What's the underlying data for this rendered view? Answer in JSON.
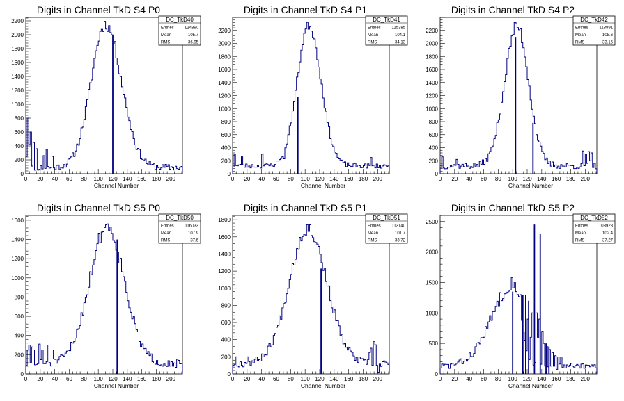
{
  "colors": {
    "line": "#00007f",
    "axis": "#000000",
    "background": "#ffffff"
  },
  "chart_data": [
    {
      "type": "histogram",
      "title": "Digits in Channel TkD S4 P0",
      "xlabel": "Channel Number",
      "ylabel": "",
      "xlim": [
        0,
        216
      ],
      "ylim": [
        0,
        2250
      ],
      "xticks": [
        0,
        20,
        40,
        60,
        80,
        100,
        120,
        140,
        160,
        180,
        200
      ],
      "yticks": [
        0,
        200,
        400,
        600,
        800,
        1000,
        1200,
        1400,
        1600,
        1800,
        2000,
        2200
      ],
      "stats": {
        "name": "DC_TkD40",
        "rows": [
          [
            "Entries",
            "124890"
          ],
          [
            "Mean",
            "105.7"
          ],
          [
            "RMS",
            "36.95"
          ]
        ]
      },
      "profile": {
        "peak_x": 110,
        "peak_y": 2150,
        "sigma_left": 20,
        "sigma_right": 22,
        "base": 90,
        "noise": 90,
        "seed": 11
      },
      "bin_overrides": [
        [
          0,
          450
        ],
        [
          1,
          250
        ],
        [
          3,
          800
        ],
        [
          5,
          420
        ],
        [
          6,
          600
        ],
        [
          10,
          450
        ],
        [
          15,
          360
        ],
        [
          24,
          260
        ],
        [
          28,
          350
        ],
        [
          36,
          250
        ]
      ],
      "spikes": [
        [
          120,
          2000
        ]
      ]
    },
    {
      "type": "histogram",
      "title": "Digits in Channel TkD S4 P1",
      "xlabel": "Channel Number",
      "ylabel": "",
      "xlim": [
        0,
        216
      ],
      "ylim": [
        0,
        2400
      ],
      "xticks": [
        0,
        20,
        40,
        60,
        80,
        100,
        120,
        140,
        160,
        180,
        200
      ],
      "yticks": [
        0,
        200,
        400,
        600,
        800,
        1000,
        1200,
        1400,
        1600,
        1800,
        2000,
        2200
      ],
      "stats": {
        "name": "DC_TkD41",
        "rows": [
          [
            "Entries",
            "115385"
          ],
          [
            "Mean",
            "104.1"
          ],
          [
            "RMS",
            "34.13"
          ]
        ]
      },
      "profile": {
        "peak_x": 105,
        "peak_y": 2280,
        "sigma_left": 16,
        "sigma_right": 17,
        "base": 120,
        "noise": 70,
        "seed": 23
      },
      "bin_overrides": [
        [
          2,
          300
        ],
        [
          12,
          260
        ],
        [
          40,
          300
        ],
        [
          70,
          230
        ],
        [
          190,
          250
        ]
      ],
      "spikes": [
        [
          90,
          1180
        ]
      ]
    },
    {
      "type": "histogram",
      "title": "Digits in Channel TkD S4 P2",
      "xlabel": "Channel Number",
      "ylabel": "",
      "xlim": [
        0,
        216
      ],
      "ylim": [
        0,
        2400
      ],
      "xticks": [
        0,
        20,
        40,
        60,
        80,
        100,
        120,
        140,
        160,
        180,
        200
      ],
      "yticks": [
        0,
        200,
        400,
        600,
        800,
        1000,
        1200,
        1400,
        1600,
        1800,
        2000,
        2200
      ],
      "stats": {
        "name": "DC_TkD42",
        "rows": [
          [
            "Entries",
            "118891"
          ],
          [
            "Mean",
            "108.6"
          ],
          [
            "RMS",
            "33.16"
          ]
        ]
      },
      "profile": {
        "peak_x": 106,
        "peak_y": 2270,
        "sigma_left": 17,
        "sigma_right": 16,
        "base": 120,
        "noise": 90,
        "seed": 37
      },
      "bin_overrides": [
        [
          196,
          350
        ],
        [
          200,
          300
        ],
        [
          204,
          340
        ],
        [
          206,
          200
        ],
        [
          208,
          320
        ],
        [
          2,
          260
        ],
        [
          22,
          220
        ]
      ],
      "spikes": [
        [
          104,
          2100
        ],
        [
          128,
          780
        ]
      ]
    },
    {
      "type": "histogram",
      "title": "Digits in Channel TkD S5 P0",
      "xlabel": "Channel Number",
      "ylabel": "",
      "xlim": [
        0,
        216
      ],
      "ylim": [
        0,
        1650
      ],
      "xticks": [
        0,
        20,
        40,
        60,
        80,
        100,
        120,
        140,
        160,
        180,
        200
      ],
      "yticks": [
        0,
        200,
        400,
        600,
        800,
        1000,
        1200,
        1400,
        1600
      ],
      "stats": {
        "name": "DC_TkD50",
        "rows": [
          [
            "Entries",
            "116033"
          ],
          [
            "Mean",
            "107.9"
          ],
          [
            "RMS",
            "37.6"
          ]
        ]
      },
      "profile": {
        "peak_x": 112,
        "peak_y": 1540,
        "sigma_left": 24,
        "sigma_right": 24,
        "base": 110,
        "noise": 80,
        "seed": 51
      },
      "bin_overrides": [
        [
          2,
          250
        ],
        [
          4,
          300
        ],
        [
          8,
          280
        ],
        [
          10,
          250
        ],
        [
          18,
          310
        ],
        [
          22,
          250
        ],
        [
          30,
          300
        ],
        [
          36,
          250
        ]
      ],
      "spikes": [
        [
          126,
          1400
        ]
      ]
    },
    {
      "type": "histogram",
      "title": "Digits in Channel TkD S5 P1",
      "xlabel": "Channel Number",
      "ylabel": "",
      "xlim": [
        0,
        216
      ],
      "ylim": [
        0,
        1850
      ],
      "xticks": [
        0,
        20,
        40,
        60,
        80,
        100,
        120,
        140,
        160,
        180,
        200
      ],
      "yticks": [
        0,
        200,
        400,
        600,
        800,
        1000,
        1200,
        1400,
        1600,
        1800
      ],
      "stats": {
        "name": "DC_TkD51",
        "rows": [
          [
            "Entries",
            "113140"
          ],
          [
            "Mean",
            "101.7"
          ],
          [
            "RMS",
            "33.72"
          ]
        ]
      },
      "profile": {
        "peak_x": 104,
        "peak_y": 1700,
        "sigma_left": 26,
        "sigma_right": 26,
        "base": 120,
        "noise": 80,
        "seed": 67
      },
      "bin_overrides": [
        [
          188,
          250
        ],
        [
          190,
          300
        ],
        [
          194,
          380
        ],
        [
          196,
          340
        ],
        [
          198,
          100
        ],
        [
          200,
          20
        ],
        [
          4,
          200
        ],
        [
          20,
          200
        ]
      ],
      "spikes": [
        [
          122,
          1230
        ]
      ]
    },
    {
      "type": "histogram",
      "title": "Digits in Channel TkD S5 P2",
      "xlabel": "Channel Number",
      "ylabel": "",
      "xlim": [
        0,
        216
      ],
      "ylim": [
        0,
        2600
      ],
      "xticks": [
        0,
        20,
        40,
        60,
        80,
        100,
        120,
        140,
        160,
        180,
        200
      ],
      "yticks": [
        0,
        500,
        1000,
        1500,
        2000,
        2500
      ],
      "stats": {
        "name": "DC_TkD52",
        "rows": [
          [
            "Entries",
            "108928"
          ],
          [
            "Mean",
            "102.4"
          ],
          [
            "RMS",
            "37.27"
          ]
        ]
      },
      "profile": {
        "peak_x": 102,
        "peak_y": 1500,
        "sigma_left": 30,
        "sigma_right": 10,
        "base": 120,
        "noise": 110,
        "seed": 83
      },
      "bin_overrides": [
        [
          110,
          1300
        ],
        [
          120,
          900
        ],
        [
          124,
          600
        ],
        [
          126,
          1000
        ],
        [
          132,
          1000
        ],
        [
          134,
          600
        ],
        [
          136,
          900
        ],
        [
          140,
          700
        ],
        [
          142,
          500
        ],
        [
          146,
          450
        ],
        [
          150,
          400
        ],
        [
          154,
          350
        ],
        [
          158,
          300
        ],
        [
          162,
          280
        ],
        [
          166,
          280
        ]
      ],
      "spikes": [
        [
          100,
          1350
        ],
        [
          114,
          1300
        ],
        [
          118,
          1300
        ],
        [
          122,
          1200
        ],
        [
          130,
          2450
        ],
        [
          138,
          2300
        ],
        [
          146,
          500
        ],
        [
          150,
          450
        ]
      ]
    }
  ]
}
